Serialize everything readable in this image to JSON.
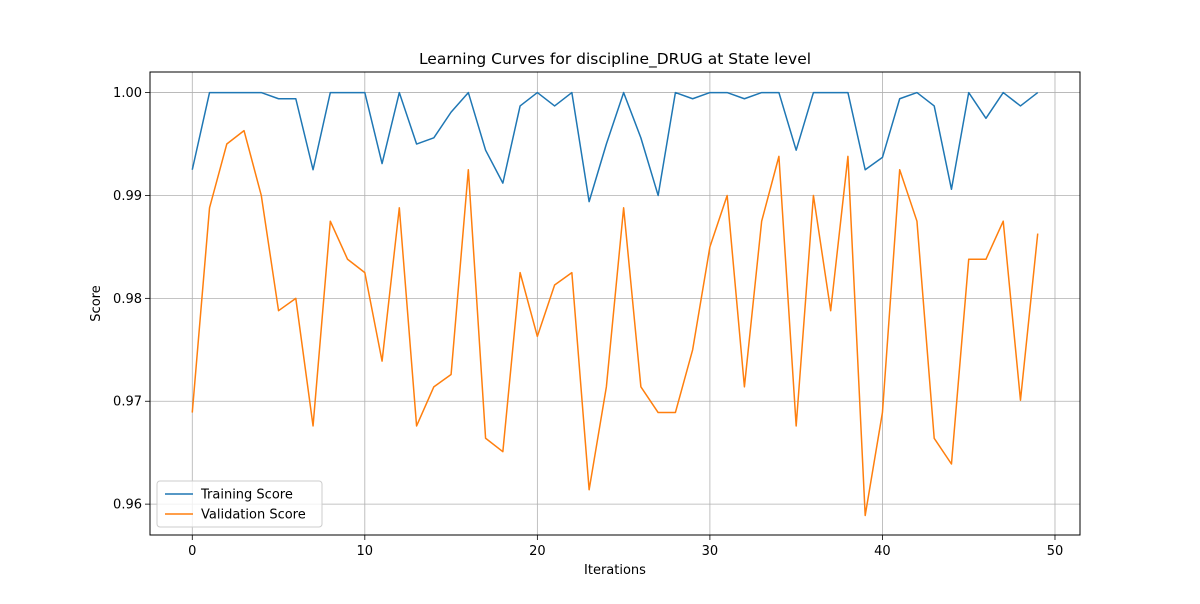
{
  "chart_data": {
    "type": "line",
    "title": "Learning Curves for discipline_DRUG at State level",
    "xlabel": "Iterations",
    "ylabel": "Score",
    "xlim": [
      -2.45,
      51.45
    ],
    "ylim": [
      0.957,
      1.002
    ],
    "xticks": [
      0,
      10,
      20,
      30,
      40,
      50
    ],
    "xtick_labels": [
      "0",
      "10",
      "20",
      "30",
      "40",
      "50"
    ],
    "yticks": [
      0.96,
      0.97,
      0.98,
      0.99,
      1.0
    ],
    "ytick_labels": [
      "0.96",
      "0.97",
      "0.98",
      "0.99",
      "1.00"
    ],
    "grid": true,
    "legend_position": "lower-left",
    "x": [
      0,
      1,
      2,
      3,
      4,
      5,
      6,
      7,
      8,
      9,
      10,
      11,
      12,
      13,
      14,
      15,
      16,
      17,
      18,
      19,
      20,
      21,
      22,
      23,
      24,
      25,
      26,
      27,
      28,
      29,
      30,
      31,
      32,
      33,
      34,
      35,
      36,
      37,
      38,
      39,
      40,
      41,
      42,
      43,
      44,
      45,
      46,
      47,
      48,
      49
    ],
    "series": [
      {
        "name": "Training Score",
        "color": "#1f77b4",
        "values": [
          0.9925,
          1.0,
          1.0,
          1.0,
          1.0,
          0.9994,
          0.9994,
          0.9925,
          1.0,
          1.0,
          1.0,
          0.9931,
          1.0,
          0.995,
          0.9956,
          0.9981,
          1.0,
          0.9944,
          0.9912,
          0.9987,
          1.0,
          0.9987,
          1.0,
          0.9894,
          0.995,
          1.0,
          0.9956,
          0.99,
          1.0,
          0.9994,
          1.0,
          1.0,
          0.9994,
          1.0,
          1.0,
          0.9944,
          1.0,
          1.0,
          1.0,
          0.9925,
          0.9937,
          0.9994,
          1.0,
          0.9987,
          0.9906,
          1.0,
          0.9975,
          1.0,
          0.9987,
          1.0
        ]
      },
      {
        "name": "Validation Score",
        "color": "#ff7f0e",
        "values": [
          0.9689,
          0.9888,
          0.995,
          0.9963,
          0.99,
          0.9788,
          0.98,
          0.9676,
          0.9875,
          0.9838,
          0.9825,
          0.9739,
          0.9888,
          0.9676,
          0.9714,
          0.9726,
          0.9925,
          0.9664,
          0.9651,
          0.9825,
          0.9763,
          0.9813,
          0.9825,
          0.9614,
          0.9714,
          0.9888,
          0.9714,
          0.9689,
          0.9689,
          0.975,
          0.985,
          0.99,
          0.9714,
          0.9875,
          0.9938,
          0.9676,
          0.99,
          0.9788,
          0.9938,
          0.9589,
          0.9689,
          0.9925,
          0.9875,
          0.9664,
          0.9639,
          0.9838,
          0.9838,
          0.9875,
          0.9701,
          0.9863
        ]
      }
    ]
  }
}
